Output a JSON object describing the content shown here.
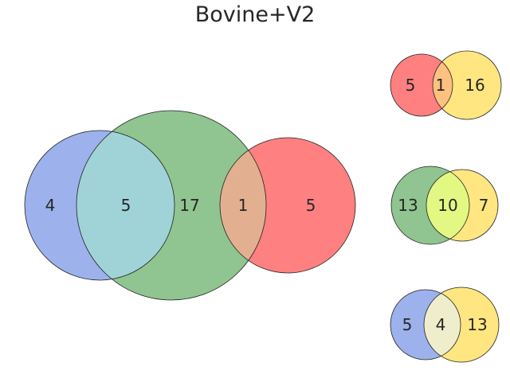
{
  "title": "Bovine+V2",
  "colors": {
    "blue": "#9db2ec",
    "green": "#90c490",
    "red": "#ff8080",
    "yellow": "#ffe680",
    "blue_green": "#a0d3d8",
    "green_red": "#e2b090",
    "red_yellow": "#ffc080",
    "green_yellow": "#e2f882",
    "blue_yellow": "#eeeecd"
  },
  "main_venn": {
    "regions": {
      "blue_only": "4",
      "blue_green": "5",
      "green_only": "17",
      "green_red": "1",
      "red_only": "5"
    }
  },
  "small_venns": [
    {
      "left_color": "red",
      "right_color": "yellow",
      "overlap_color": "red_yellow",
      "left": "5",
      "overlap": "1",
      "right": "16"
    },
    {
      "left_color": "green",
      "right_color": "yellow",
      "overlap_color": "green_yellow",
      "left": "13",
      "overlap": "10",
      "right": "7"
    },
    {
      "left_color": "blue",
      "right_color": "yellow",
      "overlap_color": "blue_yellow",
      "left": "5",
      "overlap": "4",
      "right": "13"
    }
  ]
}
